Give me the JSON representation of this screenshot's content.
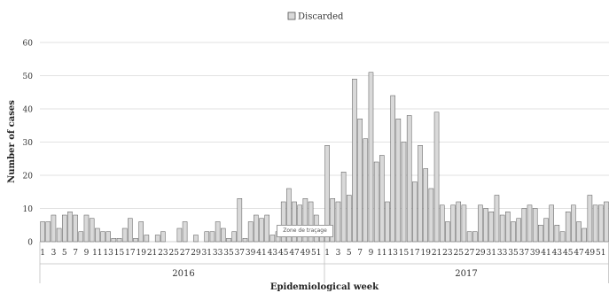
{
  "chart_data": {
    "type": "bar",
    "legend": {
      "entries": [
        "Discarded"
      ],
      "placement": "top-center"
    },
    "xlabel": "Epidemiological week",
    "ylabel": "Number of cases",
    "ylim": [
      0,
      60
    ],
    "yticks": [
      0,
      10,
      20,
      30,
      40,
      50,
      60
    ],
    "grid": "horizontal",
    "series": [
      {
        "name": "Discarded",
        "color": "#d9d9d9"
      }
    ],
    "groups": [
      {
        "label": "2016",
        "weeks": [
          1,
          2,
          3,
          4,
          5,
          6,
          7,
          8,
          9,
          10,
          11,
          12,
          13,
          14,
          15,
          16,
          17,
          18,
          19,
          20,
          21,
          22,
          23,
          24,
          25,
          26,
          27,
          28,
          29,
          30,
          31,
          32,
          33,
          34,
          35,
          36,
          37,
          38,
          39,
          40,
          41,
          42,
          43,
          44,
          45,
          46,
          47,
          48,
          49,
          50,
          51,
          52
        ],
        "values": [
          6,
          6,
          8,
          4,
          8,
          9,
          8,
          3,
          8,
          7,
          4,
          3,
          3,
          1,
          1,
          4,
          7,
          1,
          6,
          2,
          0,
          2,
          3,
          0,
          0,
          4,
          6,
          0,
          2,
          0,
          3,
          3,
          6,
          4,
          1,
          3,
          13,
          1,
          6,
          8,
          7,
          8,
          2,
          3,
          12,
          16,
          12,
          11,
          13,
          12,
          8,
          2
        ]
      },
      {
        "label": "2017",
        "weeks": [
          1,
          2,
          3,
          4,
          5,
          6,
          7,
          8,
          9,
          10,
          11,
          12,
          13,
          14,
          15,
          16,
          17,
          18,
          19,
          20,
          21,
          22,
          23,
          24,
          25,
          26,
          27,
          28,
          29,
          30,
          31,
          32,
          33,
          34,
          35,
          36,
          37,
          38,
          39,
          40,
          41,
          42,
          43,
          44,
          45,
          46,
          47,
          48,
          49,
          50,
          51,
          52
        ],
        "values": [
          29,
          13,
          12,
          21,
          14,
          49,
          37,
          31,
          51,
          24,
          26,
          12,
          44,
          37,
          30,
          38,
          18,
          29,
          22,
          16,
          39,
          11,
          6,
          11,
          12,
          11,
          3,
          3,
          11,
          10,
          9,
          14,
          8,
          9,
          6,
          7,
          10,
          11,
          10,
          5,
          7,
          11,
          5,
          3,
          9,
          11,
          6,
          4,
          14,
          11,
          11,
          12
        ]
      }
    ],
    "xtick_labels_shown": [
      "1",
      "3",
      "5",
      "7",
      "9",
      "11",
      "13",
      "15",
      "17",
      "19",
      "21",
      "23",
      "25",
      "27",
      "29",
      "31",
      "33",
      "35",
      "37",
      "39",
      "41",
      "43",
      "45",
      "47",
      "49",
      "51"
    ]
  },
  "overlay": {
    "tooltip_text": "Zone de traçage"
  },
  "colors": {
    "bar_fill": "#d9d9d9",
    "bar_stroke": "#555555",
    "grid": "#d9d9d9",
    "axis": "#bfbfbf"
  }
}
